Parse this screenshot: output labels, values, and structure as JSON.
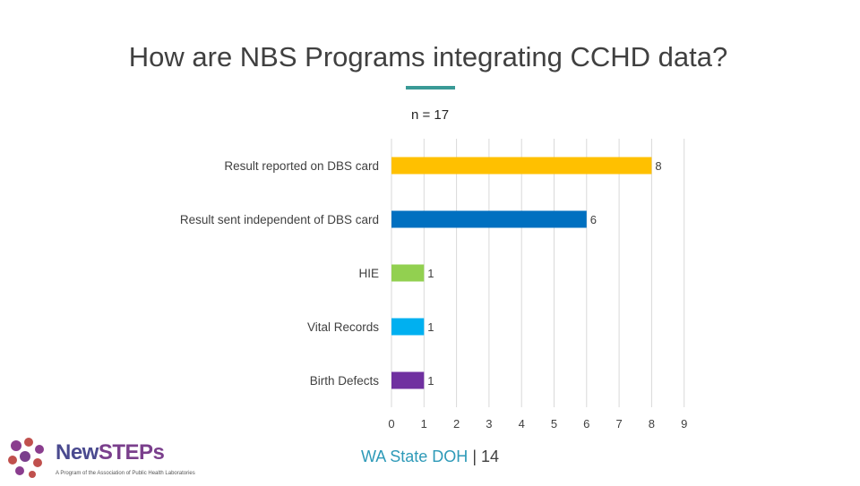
{
  "slide": {
    "title": "How are NBS Programs integrating CCHD data?",
    "footer_source": "WA State DOH",
    "footer_separator": "|",
    "page_number": "14"
  },
  "logo": {
    "wordmark_part1": "New",
    "wordmark_part2": "STEPs",
    "tagline": "A Program of the Association of Public Health Laboratories"
  },
  "colors": {
    "accent": "#3a9a96",
    "bar_dbs_card": "#ffc000",
    "bar_independent": "#0070c0",
    "bar_hie": "#92d050",
    "bar_vital": "#00b0f0",
    "bar_birth": "#7030a0"
  },
  "chart_data": {
    "type": "bar",
    "orientation": "horizontal",
    "title": "How are NBS Programs integrating CCHD data?",
    "subtitle": "n = 17",
    "categories": [
      "Result reported on DBS card",
      "Result sent independent of DBS card",
      "HIE",
      "Vital Records",
      "Birth Defects"
    ],
    "values": [
      8,
      6,
      1,
      1,
      1
    ],
    "colors": [
      "#ffc000",
      "#0070c0",
      "#92d050",
      "#00b0f0",
      "#7030a0"
    ],
    "xlim": [
      0,
      9
    ],
    "xticks": [
      0,
      1,
      2,
      3,
      4,
      5,
      6,
      7,
      8,
      9
    ],
    "grid": true,
    "legend": "none",
    "data_labels": true
  }
}
